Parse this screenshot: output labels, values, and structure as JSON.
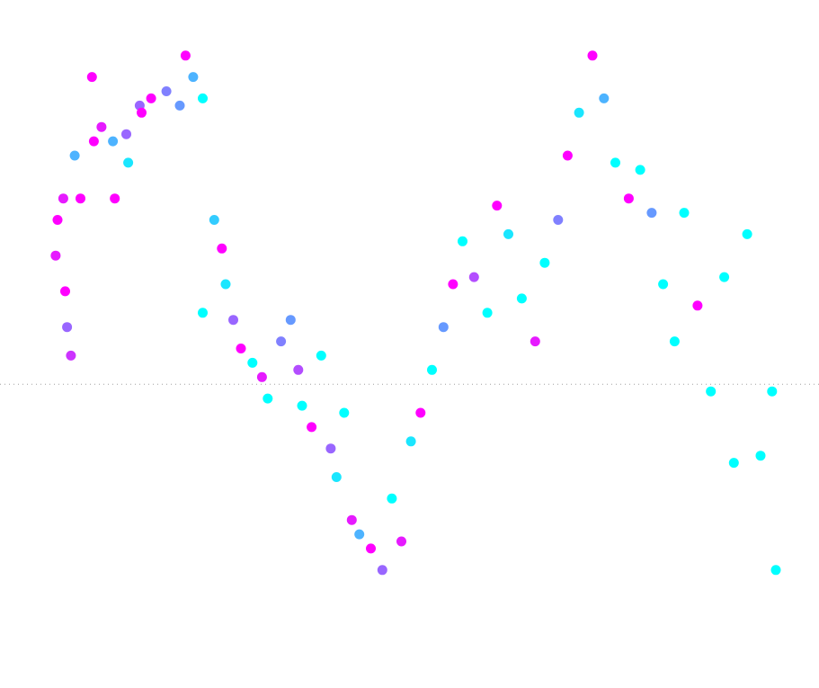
{
  "chart_data": {
    "type": "scatter",
    "title": "",
    "xlabel": "",
    "ylabel": "",
    "xlim": [
      0,
      40
    ],
    "ylim": [
      -4,
      5
    ],
    "grid": false,
    "legend": "none",
    "reference_line": {
      "y": 0,
      "style": "dotted",
      "color": "#a0a0a0"
    },
    "colormap": [
      "#00ffff",
      "#8080ff",
      "#ff00ff"
    ],
    "points": [
      [
        1.5,
        1.8,
        0.9
      ],
      [
        1.6,
        2.3,
        1.0
      ],
      [
        1.9,
        2.6,
        0.9
      ],
      [
        2.0,
        1.3,
        1.0
      ],
      [
        2.1,
        0.8,
        0.6
      ],
      [
        2.3,
        0.4,
        0.8
      ],
      [
        2.5,
        3.2,
        0.3
      ],
      [
        2.8,
        2.6,
        1.0
      ],
      [
        3.4,
        4.3,
        1.0
      ],
      [
        3.5,
        3.4,
        1.0
      ],
      [
        3.9,
        3.6,
        0.9
      ],
      [
        4.5,
        3.4,
        0.3
      ],
      [
        4.6,
        2.6,
        1.0
      ],
      [
        5.2,
        3.5,
        0.6
      ],
      [
        5.3,
        3.1,
        0.1
      ],
      [
        5.9,
        3.9,
        0.6
      ],
      [
        6.0,
        3.8,
        1.0
      ],
      [
        6.5,
        4.0,
        1.0
      ],
      [
        7.3,
        4.1,
        0.5
      ],
      [
        8.0,
        3.9,
        0.4
      ],
      [
        8.3,
        4.6,
        1.0
      ],
      [
        8.7,
        4.3,
        0.3
      ],
      [
        9.2,
        4.0,
        0.0
      ],
      [
        9.2,
        1.0,
        0.0
      ],
      [
        9.8,
        2.3,
        0.2
      ],
      [
        10.2,
        1.9,
        1.0
      ],
      [
        10.4,
        1.4,
        0.1
      ],
      [
        10.8,
        0.9,
        0.6
      ],
      [
        11.2,
        0.5,
        1.0
      ],
      [
        11.8,
        0.3,
        0.0
      ],
      [
        12.3,
        0.1,
        0.9
      ],
      [
        12.6,
        -0.2,
        0.0
      ],
      [
        13.3,
        0.6,
        0.5
      ],
      [
        13.8,
        0.9,
        0.4
      ],
      [
        14.2,
        0.2,
        0.7
      ],
      [
        14.4,
        -0.3,
        0.0
      ],
      [
        14.9,
        -0.6,
        1.0
      ],
      [
        15.4,
        0.4,
        0.0
      ],
      [
        15.9,
        -0.9,
        0.6
      ],
      [
        16.2,
        -1.3,
        0.1
      ],
      [
        16.6,
        -0.4,
        0.0
      ],
      [
        17.0,
        -1.9,
        0.9
      ],
      [
        17.4,
        -2.1,
        0.3
      ],
      [
        18.0,
        -2.3,
        1.0
      ],
      [
        18.6,
        -2.6,
        0.6
      ],
      [
        19.1,
        -1.6,
        0.0
      ],
      [
        19.6,
        -2.2,
        0.9
      ],
      [
        20.1,
        -0.8,
        0.1
      ],
      [
        20.6,
        -0.4,
        1.0
      ],
      [
        21.2,
        0.2,
        0.0
      ],
      [
        21.8,
        0.8,
        0.4
      ],
      [
        22.3,
        1.4,
        1.0
      ],
      [
        22.8,
        2.0,
        0.0
      ],
      [
        23.4,
        1.5,
        0.7
      ],
      [
        24.1,
        1.0,
        0.0
      ],
      [
        24.6,
        2.5,
        1.0
      ],
      [
        25.2,
        2.1,
        0.1
      ],
      [
        25.9,
        1.2,
        0.0
      ],
      [
        26.6,
        0.6,
        0.9
      ],
      [
        27.1,
        1.7,
        0.0
      ],
      [
        27.8,
        2.3,
        0.5
      ],
      [
        28.3,
        3.2,
        1.0
      ],
      [
        28.9,
        3.8,
        0.1
      ],
      [
        29.6,
        4.6,
        1.0
      ],
      [
        30.2,
        4.0,
        0.3
      ],
      [
        30.8,
        3.1,
        0.0
      ],
      [
        31.5,
        2.6,
        1.0
      ],
      [
        32.1,
        3.0,
        0.0
      ],
      [
        32.7,
        2.4,
        0.4
      ],
      [
        33.3,
        1.4,
        0.0
      ],
      [
        33.9,
        0.6,
        0.0
      ],
      [
        34.4,
        2.4,
        0.0
      ],
      [
        35.1,
        1.1,
        1.0
      ],
      [
        35.8,
        -0.1,
        0.0
      ],
      [
        36.5,
        1.5,
        0.0
      ],
      [
        37.0,
        -1.1,
        0.0
      ],
      [
        37.7,
        2.1,
        0.0
      ],
      [
        38.4,
        -1.0,
        0.0
      ],
      [
        39.0,
        -0.1,
        0.0
      ],
      [
        39.2,
        -2.6,
        0.0
      ]
    ]
  }
}
